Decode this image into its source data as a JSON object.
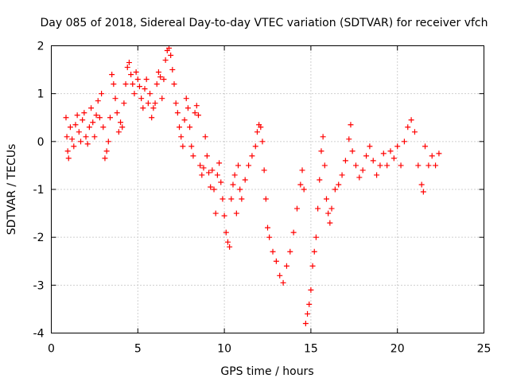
{
  "chart_data": {
    "type": "scatter",
    "title": "Day 085 of 2018, Sidereal Day-to-day VTEC variation (SDTVAR) for receiver vfch",
    "xlabel": "GPS time / hours",
    "ylabel": "SDTVAR / TECUs",
    "xlim": [
      0,
      25
    ],
    "ylim": [
      -4,
      2
    ],
    "xticks": [
      0,
      5,
      10,
      15,
      20,
      25
    ],
    "yticks": [
      -4,
      -3,
      -2,
      -1,
      0,
      1,
      2
    ],
    "grid": true,
    "marker": "plus",
    "series": [
      {
        "name": "SDTVAR",
        "color": "#ff0000",
        "points": [
          [
            0.85,
            0.5
          ],
          [
            0.9,
            0.1
          ],
          [
            0.95,
            -0.2
          ],
          [
            1.0,
            -0.35
          ],
          [
            1.1,
            0.3
          ],
          [
            1.2,
            0.05
          ],
          [
            1.3,
            -0.1
          ],
          [
            1.4,
            0.35
          ],
          [
            1.5,
            0.55
          ],
          [
            1.6,
            0.2
          ],
          [
            1.7,
            0.0
          ],
          [
            1.8,
            0.45
          ],
          [
            1.9,
            0.6
          ],
          [
            2.0,
            0.1
          ],
          [
            2.1,
            -0.05
          ],
          [
            2.2,
            0.3
          ],
          [
            2.3,
            0.7
          ],
          [
            2.4,
            0.4
          ],
          [
            2.5,
            0.1
          ],
          [
            2.6,
            0.55
          ],
          [
            2.7,
            0.85
          ],
          [
            2.8,
            0.5
          ],
          [
            2.9,
            1.0
          ],
          [
            3.0,
            0.3
          ],
          [
            3.1,
            -0.35
          ],
          [
            3.2,
            -0.2
          ],
          [
            3.3,
            0.0
          ],
          [
            3.4,
            0.5
          ],
          [
            3.5,
            1.4
          ],
          [
            3.6,
            1.2
          ],
          [
            3.7,
            0.9
          ],
          [
            3.8,
            0.6
          ],
          [
            3.9,
            0.2
          ],
          [
            4.0,
            0.4
          ],
          [
            4.1,
            0.3
          ],
          [
            4.2,
            0.8
          ],
          [
            4.3,
            1.2
          ],
          [
            4.4,
            1.55
          ],
          [
            4.5,
            1.65
          ],
          [
            4.6,
            1.4
          ],
          [
            4.7,
            1.2
          ],
          [
            4.8,
            1.0
          ],
          [
            4.9,
            1.45
          ],
          [
            5.0,
            1.3
          ],
          [
            5.1,
            1.15
          ],
          [
            5.2,
            0.9
          ],
          [
            5.3,
            0.7
          ],
          [
            5.4,
            1.1
          ],
          [
            5.5,
            1.3
          ],
          [
            5.6,
            0.8
          ],
          [
            5.7,
            1.0
          ],
          [
            5.8,
            0.5
          ],
          [
            5.9,
            0.7
          ],
          [
            6.0,
            0.8
          ],
          [
            6.1,
            1.2
          ],
          [
            6.2,
            1.45
          ],
          [
            6.3,
            1.35
          ],
          [
            6.4,
            0.9
          ],
          [
            6.5,
            1.3
          ],
          [
            6.6,
            1.7
          ],
          [
            6.7,
            1.9
          ],
          [
            6.8,
            1.95
          ],
          [
            6.9,
            1.8
          ],
          [
            7.0,
            1.5
          ],
          [
            7.1,
            1.2
          ],
          [
            7.2,
            0.8
          ],
          [
            7.3,
            0.6
          ],
          [
            7.4,
            0.3
          ],
          [
            7.5,
            0.1
          ],
          [
            7.6,
            -0.1
          ],
          [
            7.7,
            0.45
          ],
          [
            7.8,
            0.9
          ],
          [
            7.9,
            0.7
          ],
          [
            8.0,
            0.3
          ],
          [
            8.1,
            -0.1
          ],
          [
            8.2,
            -0.3
          ],
          [
            8.3,
            0.6
          ],
          [
            8.4,
            0.75
          ],
          [
            8.5,
            0.55
          ],
          [
            8.6,
            -0.5
          ],
          [
            8.7,
            -0.7
          ],
          [
            8.8,
            -0.55
          ],
          [
            8.9,
            0.1
          ],
          [
            9.0,
            -0.3
          ],
          [
            9.1,
            -0.65
          ],
          [
            9.2,
            -0.95
          ],
          [
            9.3,
            -0.6
          ],
          [
            9.4,
            -1.0
          ],
          [
            9.5,
            -1.5
          ],
          [
            9.6,
            -0.7
          ],
          [
            9.7,
            -0.45
          ],
          [
            9.8,
            -0.85
          ],
          [
            9.9,
            -1.2
          ],
          [
            10.0,
            -1.55
          ],
          [
            10.1,
            -1.9
          ],
          [
            10.2,
            -2.1
          ],
          [
            10.3,
            -2.2
          ],
          [
            10.4,
            -1.2
          ],
          [
            10.5,
            -0.9
          ],
          [
            10.6,
            -0.7
          ],
          [
            10.7,
            -1.5
          ],
          [
            10.8,
            -0.5
          ],
          [
            10.9,
            -1.0
          ],
          [
            11.0,
            -1.2
          ],
          [
            11.2,
            -0.8
          ],
          [
            11.4,
            -0.5
          ],
          [
            11.6,
            -0.3
          ],
          [
            11.8,
            -0.1
          ],
          [
            11.9,
            0.2
          ],
          [
            12.0,
            0.35
          ],
          [
            12.1,
            0.3
          ],
          [
            12.2,
            0.0
          ],
          [
            12.3,
            -0.6
          ],
          [
            12.4,
            -1.2
          ],
          [
            12.5,
            -1.8
          ],
          [
            12.6,
            -2.0
          ],
          [
            12.8,
            -2.3
          ],
          [
            13.0,
            -2.5
          ],
          [
            13.2,
            -2.8
          ],
          [
            13.4,
            -2.95
          ],
          [
            13.6,
            -2.6
          ],
          [
            13.8,
            -2.3
          ],
          [
            14.0,
            -1.9
          ],
          [
            14.2,
            -1.4
          ],
          [
            14.4,
            -0.9
          ],
          [
            14.5,
            -0.6
          ],
          [
            14.6,
            -1.0
          ],
          [
            14.7,
            -3.8
          ],
          [
            14.8,
            -3.6
          ],
          [
            14.9,
            -3.4
          ],
          [
            15.0,
            -3.1
          ],
          [
            15.1,
            -2.6
          ],
          [
            15.2,
            -2.3
          ],
          [
            15.3,
            -2.0
          ],
          [
            15.4,
            -1.4
          ],
          [
            15.5,
            -0.8
          ],
          [
            15.6,
            -0.2
          ],
          [
            15.7,
            0.1
          ],
          [
            15.8,
            -0.5
          ],
          [
            15.9,
            -1.2
          ],
          [
            16.0,
            -1.5
          ],
          [
            16.1,
            -1.7
          ],
          [
            16.2,
            -1.4
          ],
          [
            16.4,
            -1.0
          ],
          [
            16.6,
            -0.9
          ],
          [
            16.8,
            -0.7
          ],
          [
            17.0,
            -0.4
          ],
          [
            17.2,
            0.05
          ],
          [
            17.3,
            0.35
          ],
          [
            17.4,
            -0.2
          ],
          [
            17.6,
            -0.5
          ],
          [
            17.8,
            -0.75
          ],
          [
            18.0,
            -0.6
          ],
          [
            18.2,
            -0.3
          ],
          [
            18.4,
            -0.1
          ],
          [
            18.6,
            -0.4
          ],
          [
            18.8,
            -0.7
          ],
          [
            19.0,
            -0.5
          ],
          [
            19.2,
            -0.25
          ],
          [
            19.4,
            -0.5
          ],
          [
            19.6,
            -0.2
          ],
          [
            19.8,
            -0.35
          ],
          [
            20.0,
            -0.1
          ],
          [
            20.2,
            -0.5
          ],
          [
            20.4,
            0.0
          ],
          [
            20.6,
            0.3
          ],
          [
            20.8,
            0.45
          ],
          [
            21.0,
            0.2
          ],
          [
            21.2,
            -0.5
          ],
          [
            21.4,
            -0.9
          ],
          [
            21.5,
            -1.05
          ],
          [
            21.6,
            -0.1
          ],
          [
            21.8,
            -0.5
          ],
          [
            22.0,
            -0.3
          ],
          [
            22.2,
            -0.5
          ],
          [
            22.4,
            -0.25
          ]
        ]
      }
    ]
  }
}
